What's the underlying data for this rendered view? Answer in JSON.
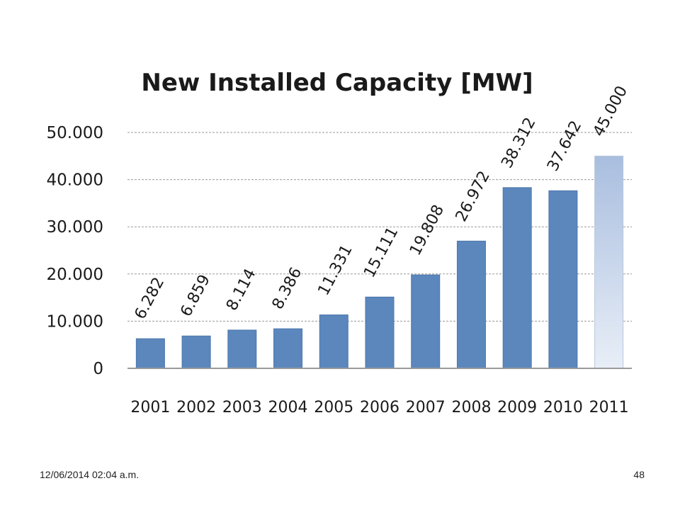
{
  "footer": {
    "date": "12/06/2014 02:04 a.m.",
    "page_number": "48"
  },
  "chart_data": {
    "type": "bar",
    "title": "New Installed Capacity [MW]",
    "xlabel": "",
    "ylabel": "",
    "categories": [
      "2001",
      "2002",
      "2003",
      "2004",
      "2005",
      "2006",
      "2007",
      "2008",
      "2009",
      "2010",
      "2011"
    ],
    "values": [
      6282,
      6859,
      8114,
      8386,
      11331,
      15111,
      19808,
      26972,
      38312,
      37642,
      45000
    ],
    "data_labels": [
      "6.282",
      "6.859",
      "8.114",
      "8.386",
      "11.331",
      "15.111",
      "19.808",
      "26.972",
      "38.312",
      "37.642",
      "45.000"
    ],
    "ylim": [
      0,
      50000
    ],
    "yticks": [
      0,
      10000,
      20000,
      30000,
      40000,
      50000
    ],
    "ytick_labels": [
      "0",
      "10.000",
      "20.000",
      "30.000",
      "40.000",
      "50.000"
    ],
    "grid": true,
    "grid_style": "dashed",
    "bar_color": "#5b87bd",
    "highlight_category": "2011",
    "highlight_gradient": [
      "#a9bedf",
      "#e8eef7"
    ]
  }
}
